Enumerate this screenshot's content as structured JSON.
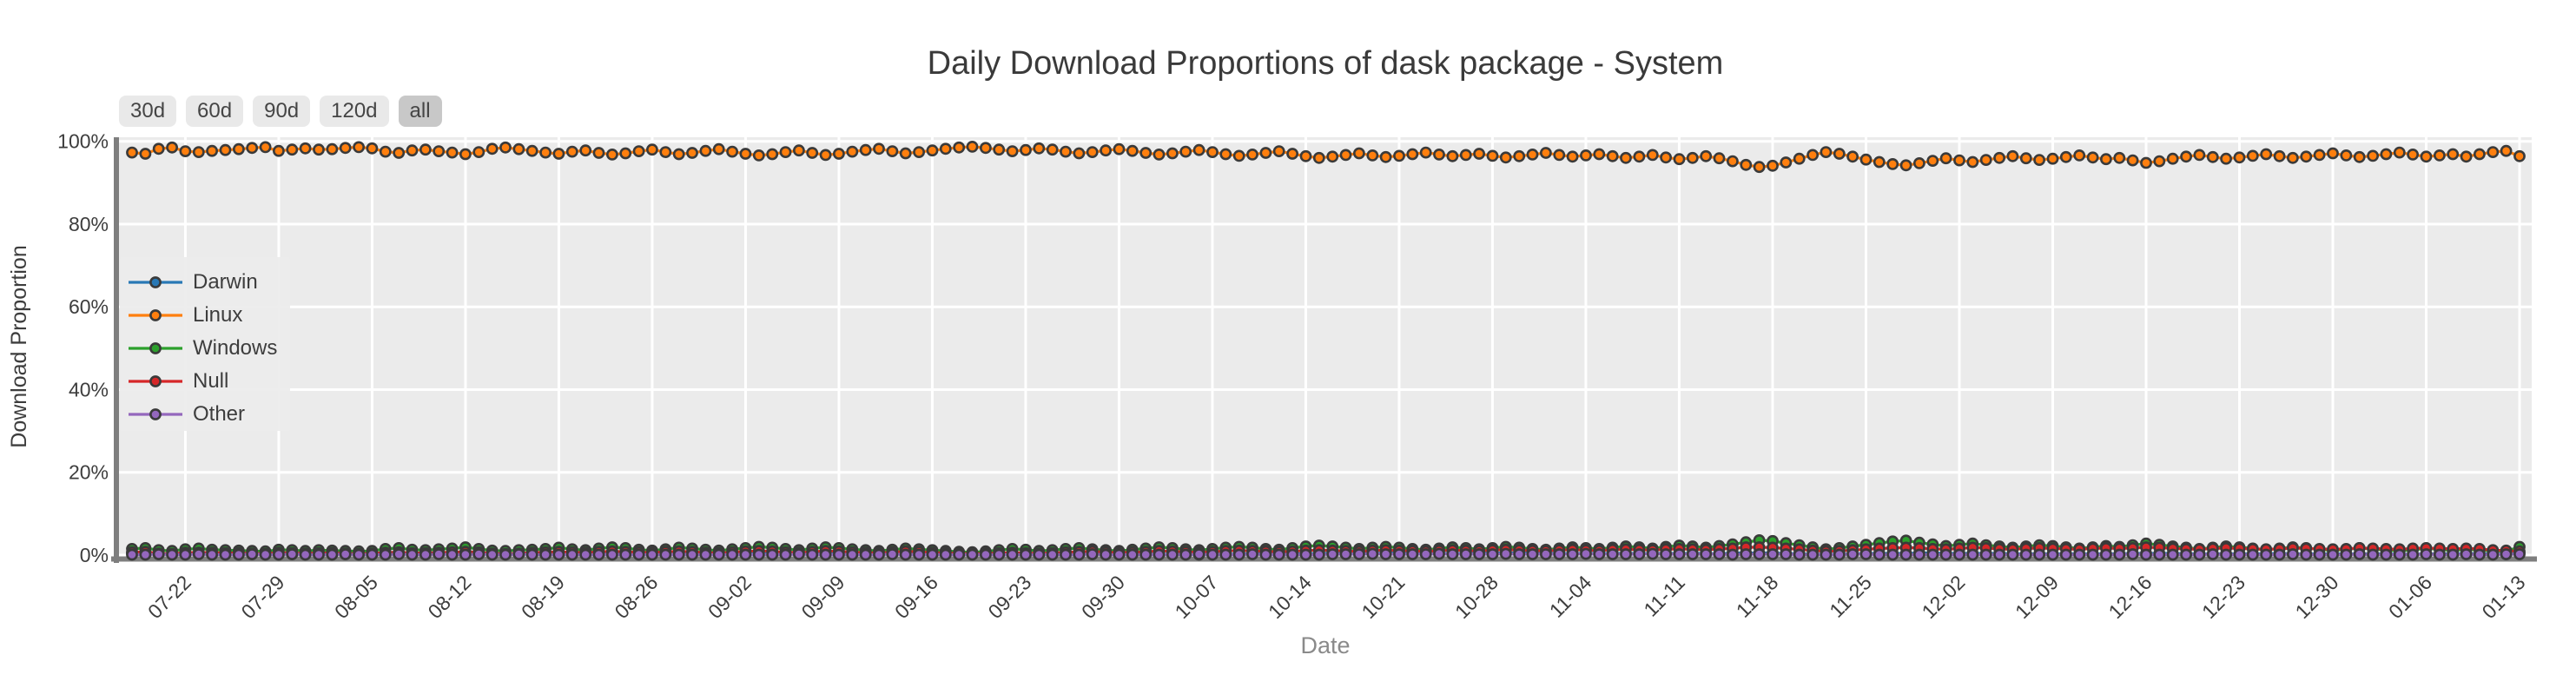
{
  "title": "Daily Download Proportions of dask package - System",
  "range_buttons": [
    {
      "label": "30d",
      "active": false
    },
    {
      "label": "60d",
      "active": false
    },
    {
      "label": "90d",
      "active": false
    },
    {
      "label": "120d",
      "active": false
    },
    {
      "label": "all",
      "active": true
    }
  ],
  "colors": {
    "plot_bg": "#ebebeb",
    "grid": "#ffffff",
    "spine": "#7e7e7e",
    "tick_text": "#3d3d3d",
    "muted_text": "#8a8a8a",
    "marker_edge": "#3a3a3a",
    "button_bg": "#e9e9e9",
    "button_active_bg": "#c8c8c8"
  },
  "chart_data": {
    "type": "line",
    "title": "Daily Download Proportions of dask package - System",
    "xlabel": "Date",
    "ylabel": "Download Proportion",
    "ylim": [
      0,
      100
    ],
    "grid": true,
    "legend_position": "upper left",
    "marker": "o",
    "y_tick_values": [
      0,
      20,
      40,
      60,
      80,
      100
    ],
    "y_tick_labels": [
      "0%",
      "20%",
      "40%",
      "60%",
      "80%",
      "100%"
    ],
    "x_tick_labels": [
      "07-22",
      "07-29",
      "08-05",
      "08-12",
      "08-19",
      "08-26",
      "09-02",
      "09-09",
      "09-16",
      "09-23",
      "09-30",
      "10-07",
      "10-14",
      "10-21",
      "10-28",
      "11-04",
      "11-11",
      "11-18",
      "11-25",
      "12-02",
      "12-09",
      "12-16",
      "12-23",
      "12-30",
      "01-06",
      "01-13"
    ],
    "x": [
      "07-18",
      "07-19",
      "07-20",
      "07-21",
      "07-22",
      "07-23",
      "07-24",
      "07-25",
      "07-26",
      "07-27",
      "07-28",
      "07-29",
      "07-30",
      "07-31",
      "08-01",
      "08-02",
      "08-03",
      "08-04",
      "08-05",
      "08-06",
      "08-07",
      "08-08",
      "08-09",
      "08-10",
      "08-11",
      "08-12",
      "08-13",
      "08-14",
      "08-15",
      "08-16",
      "08-17",
      "08-18",
      "08-19",
      "08-20",
      "08-21",
      "08-22",
      "08-23",
      "08-24",
      "08-25",
      "08-26",
      "08-27",
      "08-28",
      "08-29",
      "08-30",
      "08-31",
      "09-01",
      "09-02",
      "09-03",
      "09-04",
      "09-05",
      "09-06",
      "09-07",
      "09-08",
      "09-09",
      "09-10",
      "09-11",
      "09-12",
      "09-13",
      "09-14",
      "09-15",
      "09-16",
      "09-17",
      "09-18",
      "09-19",
      "09-20",
      "09-21",
      "09-22",
      "09-23",
      "09-24",
      "09-25",
      "09-26",
      "09-27",
      "09-28",
      "09-29",
      "09-30",
      "10-01",
      "10-02",
      "10-03",
      "10-04",
      "10-05",
      "10-06",
      "10-07",
      "10-08",
      "10-09",
      "10-10",
      "10-11",
      "10-12",
      "10-13",
      "10-14",
      "10-15",
      "10-16",
      "10-17",
      "10-18",
      "10-19",
      "10-20",
      "10-21",
      "10-22",
      "10-23",
      "10-24",
      "10-25",
      "10-26",
      "10-27",
      "10-28",
      "10-29",
      "10-30",
      "10-31",
      "11-01",
      "11-02",
      "11-03",
      "11-04",
      "11-05",
      "11-06",
      "11-07",
      "11-08",
      "11-09",
      "11-10",
      "11-11",
      "11-12",
      "11-13",
      "11-14",
      "11-15",
      "11-16",
      "11-17",
      "11-18",
      "11-19",
      "11-20",
      "11-21",
      "11-22",
      "11-23",
      "11-24",
      "11-25",
      "11-26",
      "11-27",
      "11-28",
      "11-29",
      "11-30",
      "12-01",
      "12-02",
      "12-03",
      "12-04",
      "12-05",
      "12-06",
      "12-07",
      "12-08",
      "12-09",
      "12-10",
      "12-11",
      "12-12",
      "12-13",
      "12-14",
      "12-15",
      "12-16",
      "12-17",
      "12-18",
      "12-19",
      "12-20",
      "12-21",
      "12-22",
      "12-23",
      "12-24",
      "12-25",
      "12-26",
      "12-27",
      "12-28",
      "12-29",
      "12-30",
      "12-31",
      "01-01",
      "01-02",
      "01-03",
      "01-04",
      "01-05",
      "01-06",
      "01-07",
      "01-08",
      "01-09",
      "01-10",
      "01-11",
      "01-12",
      "01-13"
    ],
    "series": [
      {
        "name": "Darwin",
        "color": "#2878b5",
        "values": [
          0.4,
          0.4,
          0.2,
          0.2,
          0.3,
          0.3,
          0.3,
          0.3,
          0.2,
          0.2,
          0.2,
          0.3,
          0.2,
          0.2,
          0.2,
          0.2,
          0.2,
          0.2,
          0.2,
          0.3,
          0.3,
          0.3,
          0.2,
          0.3,
          0.3,
          0.3,
          0.2,
          0.2,
          0.2,
          0.2,
          0.3,
          0.4,
          0.3,
          0.3,
          0.3,
          0.3,
          0.3,
          0.3,
          0.3,
          0.2,
          0.3,
          0.3,
          0.3,
          0.3,
          0.2,
          0.3,
          0.3,
          0.3,
          0.3,
          0.3,
          0.3,
          0.3,
          0.3,
          0.3,
          0.3,
          0.2,
          0.2,
          0.3,
          0.3,
          0.3,
          0.3,
          0.2,
          0.2,
          0.2,
          0.2,
          0.3,
          0.3,
          0.2,
          0.2,
          0.2,
          0.2,
          0.3,
          0.2,
          0.2,
          0.2,
          0.2,
          0.3,
          0.2,
          0.2,
          0.2,
          0.1,
          0.2,
          0.2,
          0.3,
          0.3,
          0.3,
          0.2,
          0.3,
          0.3,
          0.4,
          0.4,
          0.4,
          0.4,
          0.4,
          0.5,
          0.5,
          0.5,
          0.4,
          0.4,
          0.4,
          0.4,
          0.5,
          0.5,
          0.5,
          0.5,
          0.5,
          0.4,
          0.4,
          0.4,
          0.4,
          0.4,
          0.4,
          0.4,
          0.4,
          0.4,
          0.4,
          0.4,
          0.4,
          0.4,
          0.3,
          0.5,
          0.5,
          0.5,
          0.5,
          0.4,
          0.3,
          0.2,
          0.2,
          0.2,
          0.3,
          0.4,
          0.4,
          0.4,
          0.4,
          0.5,
          0.5,
          0.4,
          0.4,
          0.4,
          0.4,
          0.4,
          0.3,
          0.3,
          0.3,
          0.3,
          0.3,
          0.3,
          0.3,
          0.3,
          0.3,
          0.4,
          0.4,
          0.4,
          0.4,
          0.3,
          0.3,
          0.3,
          0.3,
          0.3,
          0.3,
          0.3,
          0.4,
          0.3,
          0.3,
          0.3,
          0.3,
          0.3,
          0.3,
          0.3,
          0.3,
          0.2,
          0.2,
          0.3,
          0.3,
          0.3,
          0.4,
          0.3,
          0.3,
          0.2,
          0.5
        ]
      },
      {
        "name": "Linux",
        "color": "#ff7f0e",
        "values": [
          97.3,
          97.0,
          98.2,
          98.5,
          97.6,
          97.4,
          97.7,
          97.9,
          98.1,
          98.4,
          98.6,
          97.7,
          98.0,
          98.3,
          98.0,
          98.1,
          98.4,
          98.6,
          98.3,
          97.5,
          97.2,
          97.8,
          98.0,
          97.6,
          97.3,
          96.9,
          97.4,
          98.2,
          98.5,
          98.1,
          97.7,
          97.3,
          97.0,
          97.5,
          97.8,
          97.2,
          96.8,
          97.1,
          97.6,
          98.0,
          97.4,
          96.9,
          97.2,
          97.7,
          98.1,
          97.5,
          97.0,
          96.6,
          96.9,
          97.4,
          97.8,
          97.2,
          96.7,
          97.0,
          97.5,
          97.9,
          98.2,
          97.6,
          97.1,
          97.4,
          97.8,
          98.2,
          98.5,
          98.7,
          98.4,
          98.0,
          97.6,
          97.9,
          98.3,
          98.0,
          97.5,
          97.1,
          97.4,
          97.8,
          98.1,
          97.7,
          97.2,
          96.8,
          97.1,
          97.5,
          97.9,
          97.4,
          96.9,
          96.5,
          96.8,
          97.2,
          97.6,
          97.0,
          96.4,
          96.0,
          96.3,
          96.7,
          97.1,
          96.6,
          96.2,
          96.5,
          96.9,
          97.3,
          96.8,
          96.4,
          96.7,
          97.0,
          96.5,
          96.1,
          96.4,
          96.8,
          97.2,
          96.7,
          96.3,
          96.6,
          96.9,
          96.4,
          96.0,
          96.3,
          96.7,
          96.1,
          95.7,
          96.0,
          96.4,
          95.9,
          95.2,
          94.3,
          93.8,
          94.1,
          94.9,
          95.8,
          96.7,
          97.4,
          97.0,
          96.3,
          95.6,
          95.0,
          94.5,
          94.2,
          94.7,
          95.3,
          95.9,
          95.4,
          95.0,
          95.5,
          96.0,
          96.4,
          95.9,
          95.5,
          95.8,
          96.2,
          96.6,
          96.1,
          95.7,
          96.0,
          95.4,
          94.8,
          95.2,
          95.8,
          96.3,
          96.7,
          96.2,
          95.8,
          96.1,
          96.5,
          96.9,
          96.4,
          96.0,
          96.3,
          96.7,
          97.1,
          96.6,
          96.2,
          96.5,
          96.9,
          97.3,
          96.8,
          96.3,
          96.6,
          96.9,
          96.3,
          96.9,
          97.4,
          97.7,
          96.4
        ]
      },
      {
        "name": "Windows",
        "color": "#2ca02c",
        "values": [
          1.5,
          1.7,
          1.2,
          1.0,
          1.4,
          1.6,
          1.3,
          1.2,
          1.1,
          1.0,
          0.9,
          1.3,
          1.2,
          1.0,
          1.2,
          1.1,
          1.0,
          0.9,
          1.0,
          1.5,
          1.7,
          1.3,
          1.2,
          1.4,
          1.6,
          1.9,
          1.5,
          1.1,
          1.0,
          1.2,
          1.3,
          1.5,
          1.8,
          1.4,
          1.2,
          1.6,
          1.9,
          1.7,
          1.3,
          1.1,
          1.4,
          1.8,
          1.6,
          1.3,
          1.1,
          1.4,
          1.7,
          2.0,
          1.8,
          1.5,
          1.2,
          1.6,
          1.9,
          1.7,
          1.4,
          1.2,
          1.0,
          1.3,
          1.6,
          1.4,
          1.2,
          1.0,
          0.8,
          0.7,
          0.9,
          1.2,
          1.5,
          1.3,
          1.0,
          1.2,
          1.5,
          1.7,
          1.4,
          1.2,
          1.0,
          1.3,
          1.6,
          1.9,
          1.7,
          1.4,
          1.2,
          1.5,
          1.8,
          2.0,
          1.8,
          1.5,
          1.3,
          1.7,
          2.1,
          2.3,
          2.1,
          1.8,
          1.5,
          1.8,
          2.0,
          1.8,
          1.5,
          1.3,
          1.6,
          1.9,
          1.7,
          1.4,
          1.7,
          2.0,
          1.8,
          1.5,
          1.3,
          1.6,
          1.9,
          1.7,
          1.5,
          1.8,
          2.1,
          1.9,
          1.6,
          2.0,
          2.3,
          2.1,
          1.8,
          2.2,
          2.6,
          3.1,
          3.6,
          3.4,
          2.9,
          2.4,
          1.9,
          1.4,
          1.7,
          2.1,
          2.5,
          2.9,
          3.3,
          3.5,
          3.0,
          2.6,
          2.2,
          2.5,
          2.8,
          2.4,
          2.1,
          1.8,
          2.1,
          2.4,
          2.2,
          1.9,
          1.6,
          1.9,
          2.2,
          2.0,
          2.4,
          2.8,
          2.5,
          2.1,
          1.8,
          1.5,
          1.8,
          2.1,
          1.9,
          1.6,
          1.3,
          1.6,
          1.9,
          1.7,
          1.4,
          1.1,
          1.4,
          1.7,
          1.5,
          1.2,
          1.0,
          1.3,
          1.6,
          1.4,
          1.1,
          1.4,
          1.2,
          1.0,
          0.9,
          2.0
        ]
      },
      {
        "name": "Null",
        "color": "#d62728",
        "values": [
          0.7,
          0.8,
          0.4,
          0.3,
          0.6,
          0.6,
          0.6,
          0.5,
          0.5,
          0.4,
          0.3,
          0.6,
          0.5,
          0.4,
          0.5,
          0.5,
          0.4,
          0.3,
          0.4,
          0.6,
          0.7,
          0.5,
          0.5,
          0.6,
          0.7,
          0.8,
          0.7,
          0.4,
          0.3,
          0.4,
          0.6,
          0.7,
          0.8,
          0.7,
          0.6,
          0.8,
          0.9,
          0.8,
          0.7,
          0.6,
          0.8,
          0.9,
          0.8,
          0.6,
          0.5,
          0.7,
          0.9,
          1.0,
          0.9,
          0.7,
          0.6,
          0.8,
          1.0,
          0.9,
          0.7,
          0.6,
          0.5,
          0.7,
          0.9,
          0.8,
          0.6,
          0.5,
          0.4,
          0.3,
          0.4,
          0.5,
          0.6,
          0.5,
          0.4,
          0.5,
          0.7,
          0.8,
          0.9,
          0.7,
          0.6,
          0.7,
          0.8,
          1.0,
          0.9,
          0.8,
          0.7,
          0.8,
          1.0,
          1.1,
          1.0,
          0.9,
          0.8,
          0.9,
          1.1,
          1.2,
          1.1,
          1.0,
          0.9,
          1.1,
          1.2,
          1.1,
          1.0,
          0.9,
          1.1,
          1.2,
          1.1,
          1.0,
          1.2,
          1.3,
          1.2,
          1.1,
          1.0,
          1.2,
          1.3,
          1.2,
          1.1,
          1.3,
          1.4,
          1.3,
          1.2,
          1.4,
          1.5,
          1.4,
          1.3,
          1.5,
          1.6,
          1.9,
          1.9,
          1.8,
          1.6,
          1.4,
          1.1,
          0.9,
          1.0,
          1.2,
          1.4,
          1.6,
          1.7,
          1.8,
          1.7,
          1.5,
          1.4,
          1.6,
          1.8,
          1.7,
          1.5,
          1.4,
          1.6,
          1.7,
          1.6,
          1.5,
          1.4,
          1.6,
          1.7,
          1.6,
          1.7,
          1.9,
          1.8,
          1.6,
          1.5,
          1.4,
          1.6,
          1.7,
          1.6,
          1.5,
          1.4,
          1.5,
          1.7,
          1.6,
          1.5,
          1.4,
          1.5,
          1.7,
          1.6,
          1.5,
          1.4,
          1.6,
          1.7,
          1.6,
          1.5,
          1.6,
          1.5,
          1.2,
          1.1,
          0.9
        ]
      },
      {
        "name": "Other",
        "color": "#9467bd",
        "values": [
          0.1,
          0.1,
          0.2,
          0.1,
          0.1,
          0.2,
          0.1,
          0.1,
          0.1,
          0.2,
          0.1,
          0.1,
          0.2,
          0.1,
          0.1,
          0.1,
          0.2,
          0.1,
          0.1,
          0.1,
          0.2,
          0.1,
          0.1,
          0.2,
          0.1,
          0.1,
          0.2,
          0.1,
          0.1,
          0.2,
          0.1,
          0.1,
          0.1,
          0.1,
          0.1,
          0.1,
          0.1,
          0.1,
          0.1,
          0.1,
          0.1,
          0.1,
          0.1,
          0.1,
          0.1,
          0.1,
          0.1,
          0.1,
          0.1,
          0.1,
          0.2,
          0.1,
          0.1,
          0.1,
          0.1,
          0.1,
          0.1,
          0.2,
          0.1,
          0.1,
          0.1,
          0.1,
          0.1,
          0.1,
          0.1,
          0.1,
          0.1,
          0.1,
          0.1,
          0.1,
          0.1,
          0.1,
          0.2,
          0.1,
          0.1,
          0.1,
          0.1,
          0.1,
          0.1,
          0.1,
          0.2,
          0.1,
          0.1,
          0.1,
          0.2,
          0.1,
          0.1,
          0.1,
          0.1,
          0.1,
          0.2,
          0.2,
          0.2,
          0.3,
          0.2,
          0.2,
          0.2,
          0.2,
          0.3,
          0.2,
          0.2,
          0.2,
          0.2,
          0.3,
          0.2,
          0.2,
          0.2,
          0.2,
          0.2,
          0.3,
          0.2,
          0.2,
          0.2,
          0.2,
          0.3,
          0.2,
          0.2,
          0.2,
          0.2,
          0.2,
          0.1,
          0.2,
          0.2,
          0.2,
          0.2,
          0.1,
          0.1,
          0.1,
          0.1,
          0.2,
          0.2,
          0.1,
          0.1,
          0.1,
          0.1,
          0.1,
          0.1,
          0.1,
          0.1,
          0.1,
          0.1,
          0.1,
          0.1,
          0.1,
          0.1,
          0.1,
          0.1,
          0.1,
          0.1,
          0.1,
          0.2,
          0.1,
          0.1,
          0.1,
          0.1,
          0.1,
          0.2,
          0.1,
          0.1,
          0.1,
          0.1,
          0.1,
          0.2,
          0.1,
          0.1,
          0.1,
          0.1,
          0.2,
          0.1,
          0.1,
          0.1,
          0.1,
          0.2,
          0.1,
          0.1,
          0.2,
          0.1,
          0.1,
          0.2,
          0.2
        ]
      }
    ]
  }
}
